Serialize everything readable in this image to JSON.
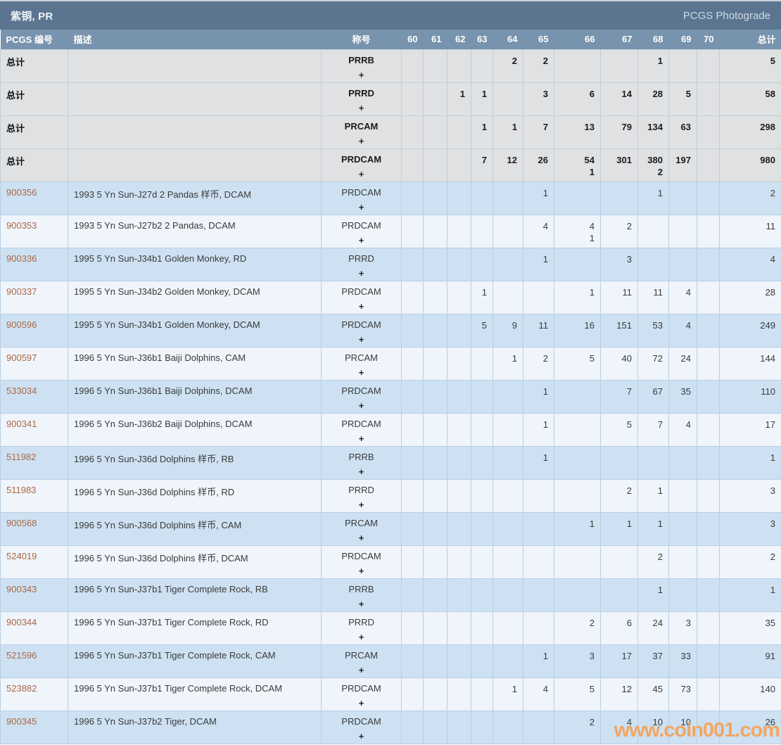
{
  "titlebar": {
    "title": "紫铜, PR",
    "photograde_label": "PCGS Photograde"
  },
  "table": {
    "columns": {
      "pcgs_number": "PCGS 编号",
      "description": "描述",
      "designation": "称号",
      "grades": [
        "60",
        "61",
        "62",
        "63",
        "64",
        "65",
        "66",
        "67",
        "68",
        "69",
        "70"
      ],
      "total": "总计"
    },
    "rows": [
      {
        "kind": "summary",
        "label": "总计",
        "description": "",
        "designation": "PRRB",
        "plus": "+",
        "grades": [
          "",
          "",
          "",
          "",
          "2",
          "2",
          "",
          "",
          "1",
          "",
          ""
        ],
        "total": "5"
      },
      {
        "kind": "summary",
        "label": "总计",
        "description": "",
        "designation": "PRRD",
        "plus": "+",
        "grades": [
          "",
          "",
          "1",
          "1",
          "",
          "3",
          "6",
          "14",
          "28",
          "5",
          ""
        ],
        "total": "58"
      },
      {
        "kind": "summary",
        "label": "总计",
        "description": "",
        "designation": "PRCAM",
        "plus": "+",
        "grades": [
          "",
          "",
          "",
          "1",
          "1",
          "7",
          "13",
          "79",
          "134",
          "63",
          ""
        ],
        "total": "298"
      },
      {
        "kind": "summary",
        "label": "总计",
        "description": "",
        "designation": "PRDCAM",
        "plus": "+",
        "grades": [
          "",
          "",
          "",
          "7",
          "12",
          "26",
          "54\n1",
          "301",
          "380\n2",
          "197",
          ""
        ],
        "total": "980"
      },
      {
        "kind": "data",
        "pcgs_number": "900356",
        "description": "1993 5 Yn Sun-J27d 2 Pandas 样币, DCAM",
        "designation": "PRDCAM",
        "plus": "+",
        "grades": [
          "",
          "",
          "",
          "",
          "",
          "1",
          "",
          "",
          "1",
          "",
          ""
        ],
        "total": "2"
      },
      {
        "kind": "data",
        "pcgs_number": "900353",
        "description": "1993 5 Yn Sun-J27b2 2 Pandas, DCAM",
        "designation": "PRDCAM",
        "plus": "+",
        "grades": [
          "",
          "",
          "",
          "",
          "",
          "4",
          "4\n1",
          "2",
          "",
          "",
          ""
        ],
        "total": "11"
      },
      {
        "kind": "data",
        "pcgs_number": "900336",
        "description": "1995 5 Yn Sun-J34b1 Golden Monkey, RD",
        "designation": "PRRD",
        "plus": "+",
        "grades": [
          "",
          "",
          "",
          "",
          "",
          "1",
          "",
          "3",
          "",
          "",
          ""
        ],
        "total": "4"
      },
      {
        "kind": "data",
        "pcgs_number": "900337",
        "description": "1995 5 Yn Sun-J34b2 Golden Monkey, DCAM",
        "designation": "PRDCAM",
        "plus": "+",
        "grades": [
          "",
          "",
          "",
          "1",
          "",
          "",
          "1",
          "11",
          "11",
          "4",
          ""
        ],
        "total": "28"
      },
      {
        "kind": "data",
        "pcgs_number": "900596",
        "description": "1995 5 Yn Sun-J34b1 Golden Monkey, DCAM",
        "designation": "PRDCAM",
        "plus": "+",
        "grades": [
          "",
          "",
          "",
          "5",
          "9",
          "11",
          "16",
          "151",
          "53",
          "4",
          ""
        ],
        "total": "249"
      },
      {
        "kind": "data",
        "pcgs_number": "900597",
        "description": "1996 5 Yn Sun-J36b1 Baiji Dolphins, CAM",
        "designation": "PRCAM",
        "plus": "+",
        "grades": [
          "",
          "",
          "",
          "",
          "1",
          "2",
          "5",
          "40",
          "72",
          "24",
          ""
        ],
        "total": "144"
      },
      {
        "kind": "data",
        "pcgs_number": "533034",
        "description": "1996 5 Yn Sun-J36b1 Baiji Dolphins, DCAM",
        "designation": "PRDCAM",
        "plus": "+",
        "grades": [
          "",
          "",
          "",
          "",
          "",
          "1",
          "",
          "7",
          "67",
          "35",
          ""
        ],
        "total": "110"
      },
      {
        "kind": "data",
        "pcgs_number": "900341",
        "description": "1996 5 Yn Sun-J36b2 Baiji Dolphins, DCAM",
        "designation": "PRDCAM",
        "plus": "+",
        "grades": [
          "",
          "",
          "",
          "",
          "",
          "1",
          "",
          "5",
          "7",
          "4",
          ""
        ],
        "total": "17"
      },
      {
        "kind": "data",
        "pcgs_number": "511982",
        "description": "1996 5 Yn Sun-J36d Dolphins 样币, RB",
        "designation": "PRRB",
        "plus": "+",
        "grades": [
          "",
          "",
          "",
          "",
          "",
          "1",
          "",
          "",
          "",
          "",
          ""
        ],
        "total": "1"
      },
      {
        "kind": "data",
        "pcgs_number": "511983",
        "description": "1996 5 Yn Sun-J36d Dolphins 样币, RD",
        "designation": "PRRD",
        "plus": "+",
        "grades": [
          "",
          "",
          "",
          "",
          "",
          "",
          "",
          "2",
          "1",
          "",
          ""
        ],
        "total": "3"
      },
      {
        "kind": "data",
        "pcgs_number": "900568",
        "description": "1996 5 Yn Sun-J36d Dolphins 样币, CAM",
        "designation": "PRCAM",
        "plus": "+",
        "grades": [
          "",
          "",
          "",
          "",
          "",
          "",
          "1",
          "1",
          "1",
          "",
          ""
        ],
        "total": "3"
      },
      {
        "kind": "data",
        "pcgs_number": "524019",
        "description": "1996 5 Yn Sun-J36d Dolphins 样币, DCAM",
        "designation": "PRDCAM",
        "plus": "+",
        "grades": [
          "",
          "",
          "",
          "",
          "",
          "",
          "",
          "",
          "2",
          "",
          ""
        ],
        "total": "2"
      },
      {
        "kind": "data",
        "pcgs_number": "900343",
        "description": "1996 5 Yn Sun-J37b1 Tiger Complete Rock, RB",
        "designation": "PRRB",
        "plus": "+",
        "grades": [
          "",
          "",
          "",
          "",
          "",
          "",
          "",
          "",
          "1",
          "",
          ""
        ],
        "total": "1"
      },
      {
        "kind": "data",
        "pcgs_number": "900344",
        "description": "1996 5 Yn Sun-J37b1 Tiger Complete Rock, RD",
        "designation": "PRRD",
        "plus": "+",
        "grades": [
          "",
          "",
          "",
          "",
          "",
          "",
          "2",
          "6",
          "24",
          "3",
          ""
        ],
        "total": "35"
      },
      {
        "kind": "data",
        "pcgs_number": "521596",
        "description": "1996 5 Yn Sun-J37b1 Tiger Complete Rock, CAM",
        "designation": "PRCAM",
        "plus": "+",
        "grades": [
          "",
          "",
          "",
          "",
          "",
          "1",
          "3",
          "17",
          "37",
          "33",
          ""
        ],
        "total": "91"
      },
      {
        "kind": "data",
        "pcgs_number": "523882",
        "description": "1996 5 Yn Sun-J37b1 Tiger Complete Rock, DCAM",
        "designation": "PRDCAM",
        "plus": "+",
        "grades": [
          "",
          "",
          "",
          "",
          "1",
          "4",
          "5",
          "12",
          "45",
          "73",
          ""
        ],
        "total": "140"
      },
      {
        "kind": "data",
        "pcgs_number": "900345",
        "description": "1996 5 Yn Sun-J37b2 Tiger, DCAM",
        "designation": "PRDCAM",
        "plus": "+",
        "grades": [
          "",
          "",
          "",
          "",
          "",
          "",
          "2",
          "4",
          "10",
          "10",
          ""
        ],
        "total": "26"
      }
    ]
  },
  "watermark": "www.coin001.com",
  "colors": {
    "titlebar_bg": "#5b7590",
    "header_bg": "#7893ad",
    "summary_row_bg": "#e0e1e3",
    "row_blue": "#cde1f2",
    "row_light": "#eff5fb",
    "pcgs_link": "#ad6746",
    "watermark": "#f09749"
  }
}
